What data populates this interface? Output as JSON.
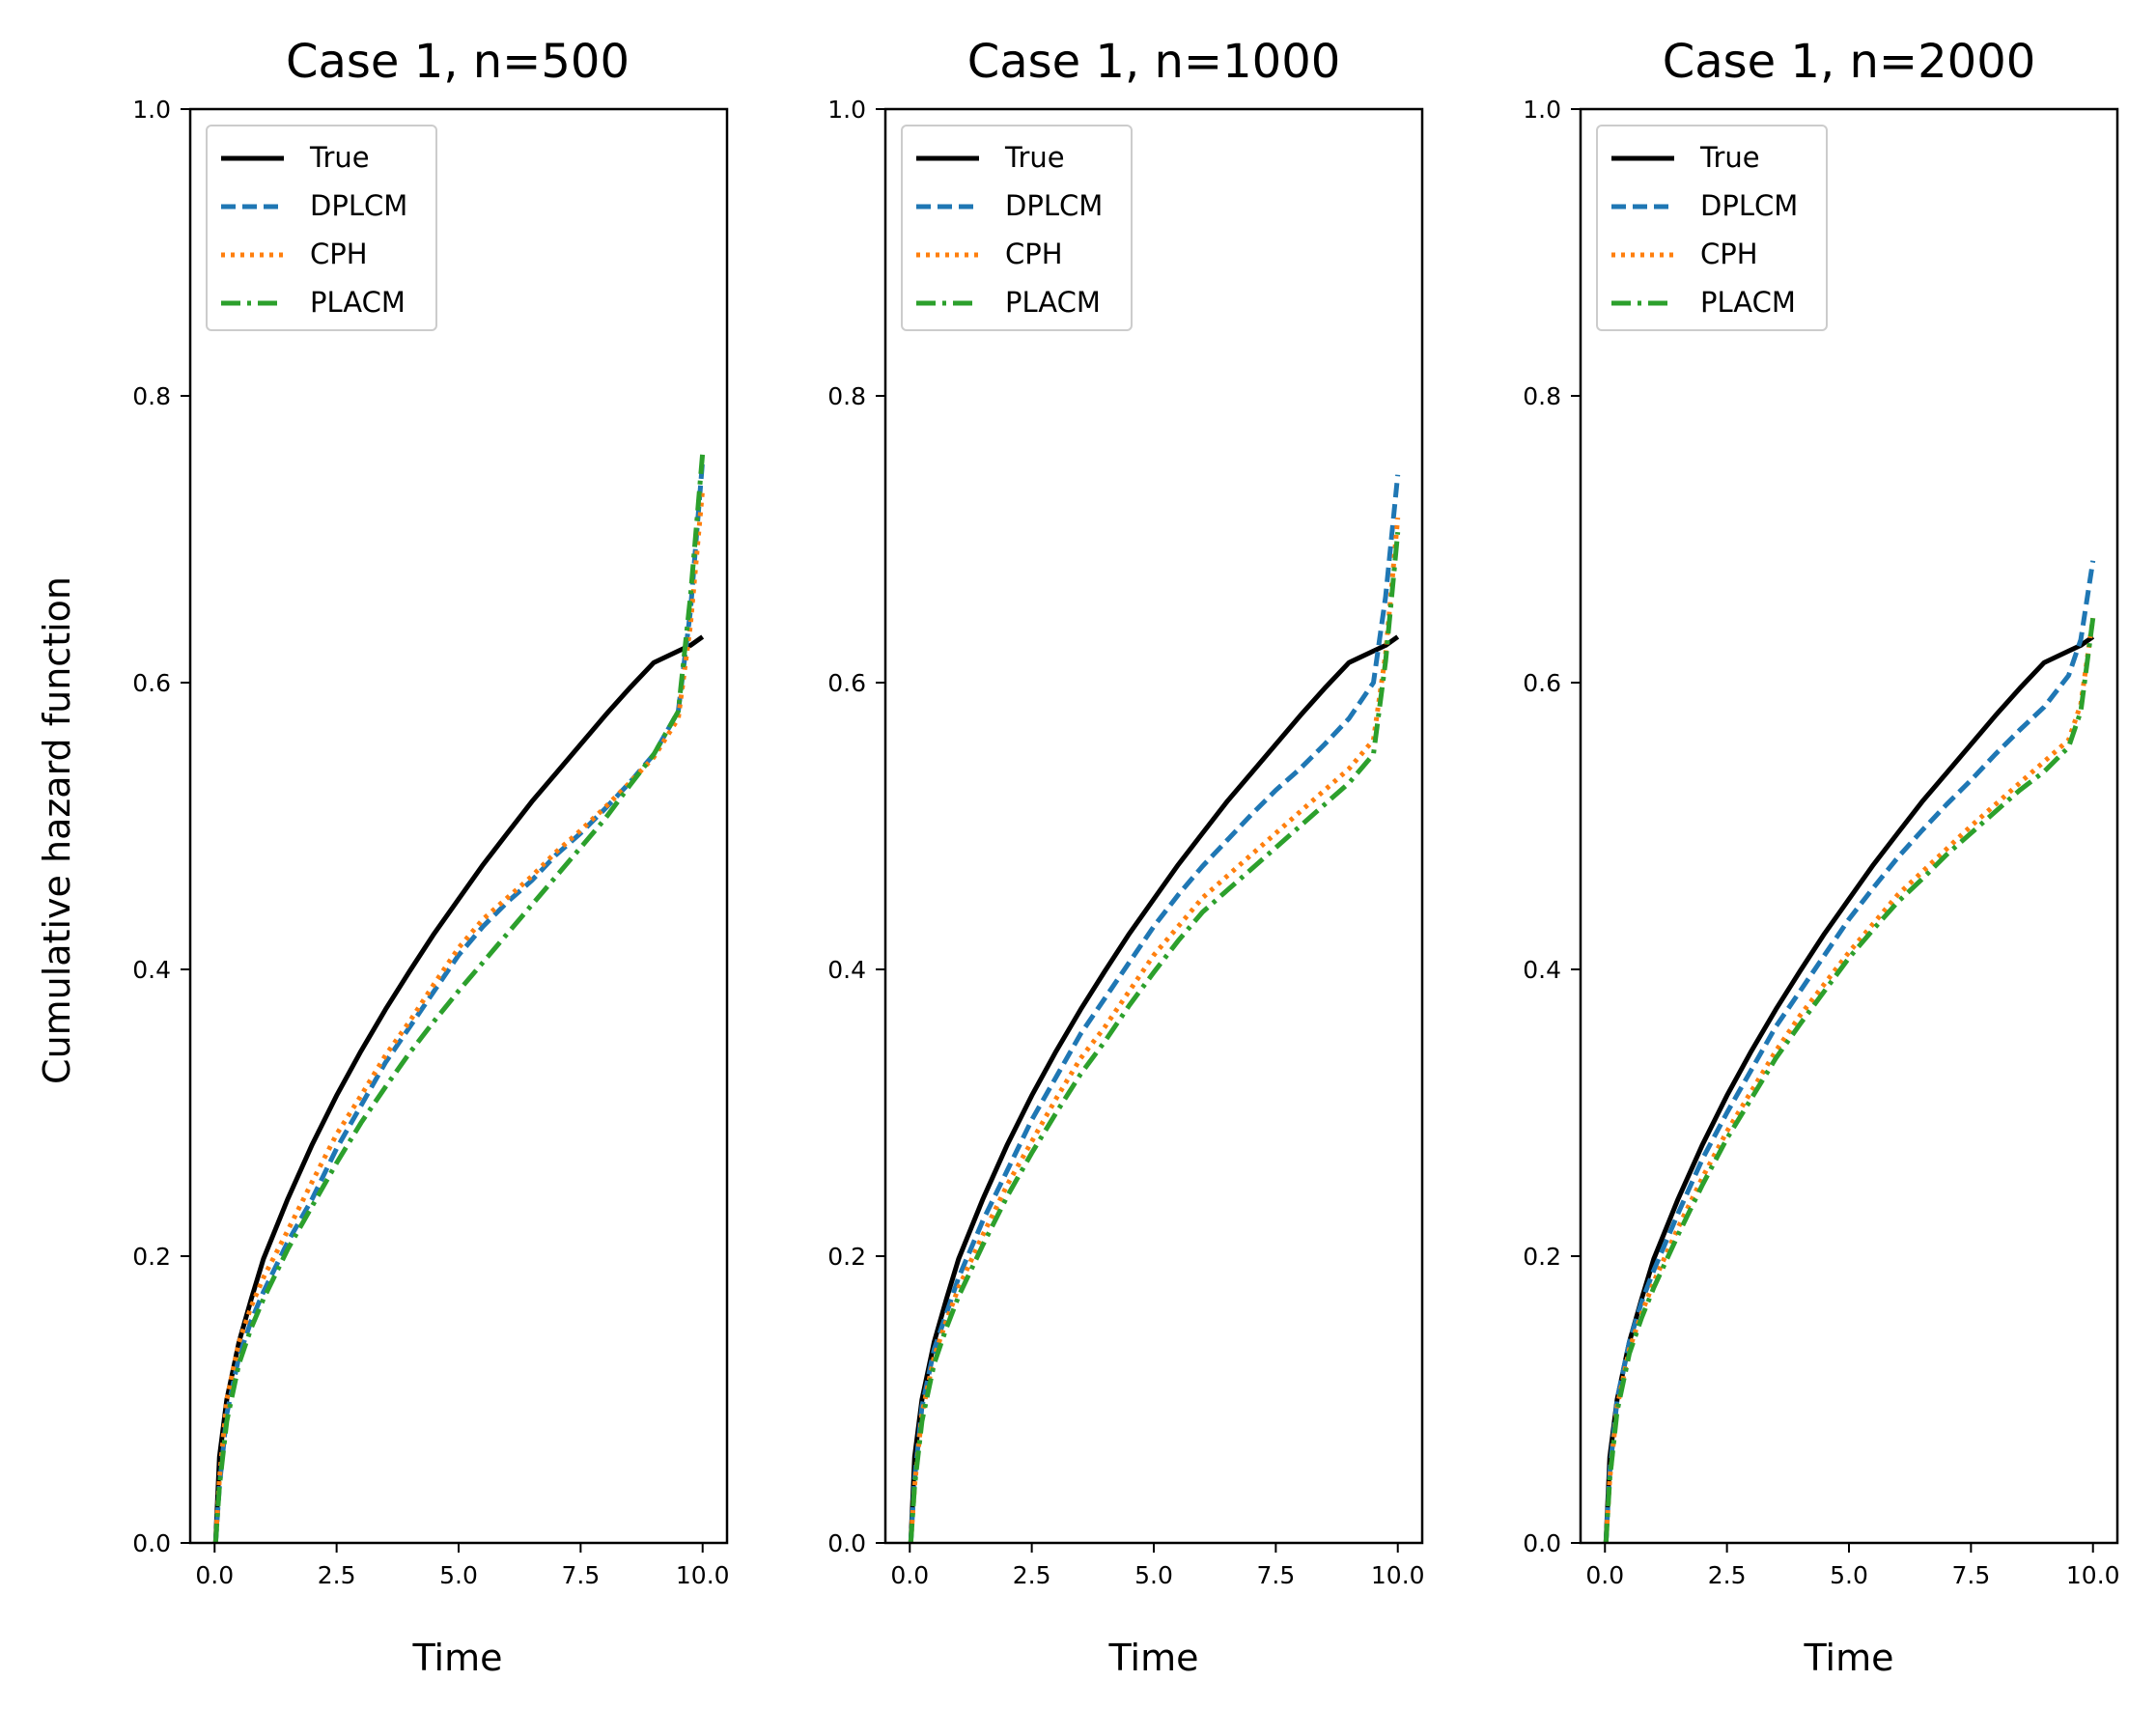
{
  "chart_data": [
    {
      "type": "line",
      "title": "Case 1, n=500",
      "xlabel": "Time",
      "ylabel": "Cumulative hazard function",
      "xlim": [
        -0.5,
        10.5
      ],
      "ylim": [
        0.0,
        1.0
      ],
      "xticks": [
        "0.0",
        "2.5",
        "5.0",
        "7.5",
        "10.0"
      ],
      "yticks": [
        "0.0",
        "0.2",
        "0.4",
        "0.6",
        "0.8",
        "1.0"
      ],
      "legend_position": "top-left",
      "grid": false,
      "x": [
        0.02,
        0.1,
        0.25,
        0.5,
        0.75,
        1.0,
        1.5,
        2.0,
        2.5,
        3.0,
        3.5,
        4.0,
        4.5,
        5.0,
        5.5,
        6.0,
        6.5,
        7.0,
        7.5,
        8.0,
        8.5,
        9.0,
        9.5,
        9.75,
        10.0
      ],
      "series": [
        {
          "name": "True",
          "color": "#000000",
          "dash": "solid",
          "values": [
            0.0,
            0.06,
            0.1,
            0.14,
            0.17,
            0.198,
            0.24,
            0.278,
            0.312,
            0.343,
            0.372,
            0.399,
            0.425,
            0.449,
            0.473,
            0.495,
            0.517,
            0.537,
            0.557,
            0.577,
            0.596,
            0.614,
            0.622,
            0.626,
            0.632
          ]
        },
        {
          "name": "DPLCM",
          "color": "#1f77b4",
          "dash": "dashed",
          "values": [
            0.0,
            0.04,
            0.09,
            0.13,
            0.155,
            0.175,
            0.21,
            0.24,
            0.275,
            0.305,
            0.335,
            0.36,
            0.385,
            0.41,
            0.43,
            0.447,
            0.462,
            0.48,
            0.495,
            0.512,
            0.53,
            0.55,
            0.58,
            0.65,
            0.755
          ]
        },
        {
          "name": "CPH",
          "color": "#ff7f0e",
          "dash": "dotted",
          "values": [
            0.0,
            0.045,
            0.1,
            0.14,
            0.165,
            0.185,
            0.218,
            0.252,
            0.285,
            0.312,
            0.34,
            0.364,
            0.39,
            0.415,
            0.435,
            0.45,
            0.465,
            0.482,
            0.497,
            0.513,
            0.53,
            0.548,
            0.575,
            0.64,
            0.735
          ]
        },
        {
          "name": "PLACM",
          "color": "#2ca02c",
          "dash": "dashdot",
          "values": [
            0.0,
            0.04,
            0.085,
            0.125,
            0.15,
            0.17,
            0.205,
            0.235,
            0.265,
            0.293,
            0.318,
            0.342,
            0.364,
            0.385,
            0.405,
            0.425,
            0.445,
            0.465,
            0.485,
            0.505,
            0.528,
            0.55,
            0.58,
            0.66,
            0.76
          ]
        }
      ]
    },
    {
      "type": "line",
      "title": "Case 1, n=1000",
      "xlabel": "Time",
      "ylabel": "",
      "xlim": [
        -0.5,
        10.5
      ],
      "ylim": [
        0.0,
        1.0
      ],
      "xticks": [
        "0.0",
        "2.5",
        "5.0",
        "7.5",
        "10.0"
      ],
      "yticks": [
        "0.0",
        "0.2",
        "0.4",
        "0.6",
        "0.8",
        "1.0"
      ],
      "legend_position": "top-left",
      "grid": false,
      "x": [
        0.02,
        0.1,
        0.25,
        0.5,
        0.75,
        1.0,
        1.5,
        2.0,
        2.5,
        3.0,
        3.5,
        4.0,
        4.5,
        5.0,
        5.5,
        6.0,
        6.5,
        7.0,
        7.5,
        8.0,
        8.5,
        9.0,
        9.5,
        9.75,
        10.0
      ],
      "series": [
        {
          "name": "True",
          "color": "#000000",
          "dash": "solid",
          "values": [
            0.0,
            0.06,
            0.1,
            0.14,
            0.17,
            0.198,
            0.24,
            0.278,
            0.312,
            0.343,
            0.372,
            0.399,
            0.425,
            0.449,
            0.473,
            0.495,
            0.517,
            0.537,
            0.557,
            0.577,
            0.596,
            0.614,
            0.622,
            0.626,
            0.632
          ]
        },
        {
          "name": "DPLCM",
          "color": "#1f77b4",
          "dash": "dashed",
          "values": [
            0.0,
            0.045,
            0.095,
            0.135,
            0.16,
            0.185,
            0.225,
            0.26,
            0.295,
            0.325,
            0.355,
            0.38,
            0.405,
            0.43,
            0.452,
            0.472,
            0.49,
            0.508,
            0.525,
            0.54,
            0.557,
            0.575,
            0.6,
            0.66,
            0.745
          ]
        },
        {
          "name": "CPH",
          "color": "#ff7f0e",
          "dash": "dotted",
          "values": [
            0.0,
            0.04,
            0.09,
            0.13,
            0.155,
            0.178,
            0.215,
            0.25,
            0.28,
            0.31,
            0.338,
            0.36,
            0.385,
            0.41,
            0.43,
            0.45,
            0.465,
            0.48,
            0.495,
            0.51,
            0.525,
            0.54,
            0.56,
            0.62,
            0.715
          ]
        },
        {
          "name": "PLACM",
          "color": "#2ca02c",
          "dash": "dashdot",
          "values": [
            0.0,
            0.04,
            0.085,
            0.125,
            0.15,
            0.172,
            0.208,
            0.242,
            0.272,
            0.3,
            0.327,
            0.35,
            0.375,
            0.398,
            0.42,
            0.44,
            0.455,
            0.47,
            0.485,
            0.5,
            0.515,
            0.53,
            0.55,
            0.615,
            0.705
          ]
        }
      ]
    },
    {
      "type": "line",
      "title": "Case 1, n=2000",
      "xlabel": "Time",
      "ylabel": "",
      "xlim": [
        -0.5,
        10.5
      ],
      "ylim": [
        0.0,
        1.0
      ],
      "xticks": [
        "0.0",
        "2.5",
        "5.0",
        "7.5",
        "10.0"
      ],
      "yticks": [
        "0.0",
        "0.2",
        "0.4",
        "0.6",
        "0.8",
        "1.0"
      ],
      "legend_position": "top-left",
      "grid": false,
      "x": [
        0.02,
        0.1,
        0.25,
        0.5,
        0.75,
        1.0,
        1.5,
        2.0,
        2.5,
        3.0,
        3.5,
        4.0,
        4.5,
        5.0,
        5.5,
        6.0,
        6.5,
        7.0,
        7.5,
        8.0,
        8.5,
        9.0,
        9.5,
        9.75,
        10.0
      ],
      "series": [
        {
          "name": "True",
          "color": "#000000",
          "dash": "solid",
          "values": [
            0.0,
            0.06,
            0.1,
            0.14,
            0.17,
            0.198,
            0.24,
            0.278,
            0.312,
            0.343,
            0.372,
            0.399,
            0.425,
            0.449,
            0.473,
            0.495,
            0.517,
            0.537,
            0.557,
            0.577,
            0.596,
            0.614,
            0.622,
            0.626,
            0.632
          ]
        },
        {
          "name": "DPLCM",
          "color": "#1f77b4",
          "dash": "dashed",
          "values": [
            0.0,
            0.05,
            0.1,
            0.14,
            0.168,
            0.19,
            0.23,
            0.268,
            0.3,
            0.33,
            0.36,
            0.385,
            0.41,
            0.435,
            0.457,
            0.478,
            0.497,
            0.515,
            0.532,
            0.55,
            0.567,
            0.583,
            0.605,
            0.63,
            0.685
          ]
        },
        {
          "name": "CPH",
          "color": "#ff7f0e",
          "dash": "dotted",
          "values": [
            0.0,
            0.045,
            0.095,
            0.135,
            0.16,
            0.182,
            0.22,
            0.255,
            0.287,
            0.315,
            0.343,
            0.368,
            0.39,
            0.412,
            0.432,
            0.452,
            0.468,
            0.484,
            0.5,
            0.515,
            0.53,
            0.545,
            0.56,
            0.585,
            0.645
          ]
        },
        {
          "name": "PLACM",
          "color": "#2ca02c",
          "dash": "dashdot",
          "values": [
            0.0,
            0.045,
            0.092,
            0.132,
            0.157,
            0.178,
            0.215,
            0.25,
            0.282,
            0.31,
            0.338,
            0.362,
            0.385,
            0.408,
            0.428,
            0.447,
            0.463,
            0.48,
            0.495,
            0.51,
            0.525,
            0.538,
            0.555,
            0.58,
            0.645
          ]
        }
      ]
    }
  ]
}
